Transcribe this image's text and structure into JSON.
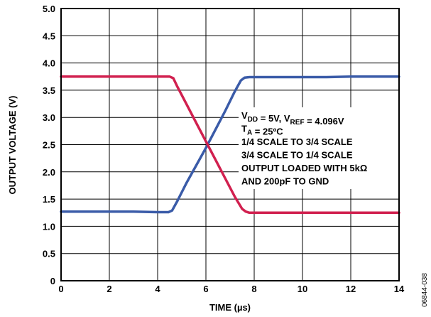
{
  "chart_data": {
    "type": "line",
    "xlabel": "TIME (µs)",
    "ylabel": "OUTPUT VOLTAGE (V)",
    "xlim": [
      0,
      14
    ],
    "ylim": [
      0,
      5.0
    ],
    "xticks": [
      "0",
      "2",
      "4",
      "6",
      "8",
      "10",
      "12",
      "14"
    ],
    "yticks": [
      "0",
      "0.5",
      "1.0",
      "1.5",
      "2.0",
      "2.5",
      "3.0",
      "3.5",
      "4.0",
      "4.5",
      "5.0"
    ],
    "grid": true,
    "series": [
      {
        "color": "#3a5ba8",
        "x": [
          0,
          1,
          2,
          3,
          4,
          4.45,
          4.6,
          4.8,
          5.2,
          5.6,
          6.0,
          6.4,
          6.8,
          7.2,
          7.45,
          7.6,
          7.8,
          8,
          9,
          10,
          11,
          12,
          13,
          14
        ],
        "y": [
          1.27,
          1.27,
          1.27,
          1.27,
          1.26,
          1.26,
          1.29,
          1.45,
          1.8,
          2.12,
          2.44,
          2.78,
          3.12,
          3.48,
          3.68,
          3.73,
          3.74,
          3.74,
          3.74,
          3.74,
          3.74,
          3.75,
          3.75,
          3.75
        ]
      },
      {
        "color": "#d1204f",
        "x": [
          0,
          1,
          2,
          3,
          4,
          4.5,
          4.65,
          4.8,
          5.2,
          5.6,
          6.0,
          6.4,
          6.8,
          7.2,
          7.5,
          7.65,
          7.8,
          8,
          9,
          10,
          11,
          12,
          13,
          14
        ],
        "y": [
          3.75,
          3.75,
          3.75,
          3.75,
          3.75,
          3.75,
          3.72,
          3.58,
          3.24,
          2.9,
          2.56,
          2.22,
          1.88,
          1.54,
          1.32,
          1.27,
          1.25,
          1.25,
          1.25,
          1.25,
          1.25,
          1.25,
          1.25,
          1.25
        ]
      }
    ],
    "annotations": [
      {
        "parts": [
          [
            "t",
            "V"
          ],
          [
            "sub",
            "DD"
          ],
          [
            "t",
            " = 5V, V"
          ],
          [
            "sub",
            "REF"
          ],
          [
            "t",
            " = 4.096V"
          ]
        ]
      },
      {
        "parts": [
          [
            "t",
            "T"
          ],
          [
            "sub",
            "A"
          ],
          [
            "t",
            " = 25ºC"
          ]
        ]
      },
      {
        "parts": [
          [
            "t",
            "1/4 SCALE TO 3/4 SCALE"
          ]
        ]
      },
      {
        "parts": [
          [
            "t",
            "3/4 SCALE TO 1/4 SCALE"
          ]
        ]
      },
      {
        "parts": [
          [
            "t",
            "OUTPUT LOADED WITH 5kΩ"
          ]
        ]
      },
      {
        "parts": [
          [
            "t",
            "AND 200pF TO GND"
          ]
        ]
      }
    ],
    "figure_id": "06844-038"
  }
}
